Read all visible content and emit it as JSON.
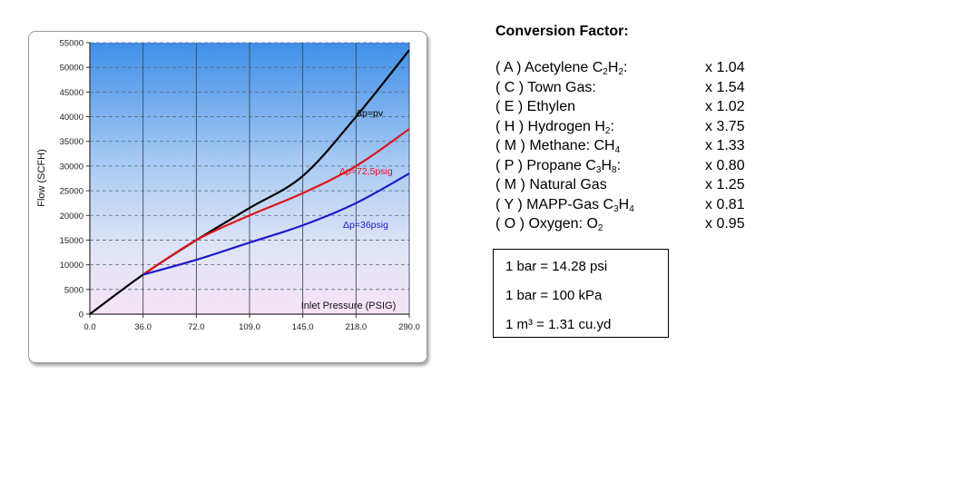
{
  "chart_data": {
    "type": "line",
    "xlabel": "Inlet Pressure (PSIG)",
    "ylabel": "Flow (SCFH)",
    "x_ticks": [
      "0.0",
      "36.0",
      "72.0",
      "109.0",
      "145.0",
      "218.0",
      "290.0"
    ],
    "y_ticks": [
      "0",
      "5000",
      "10000",
      "15000",
      "20000",
      "25000",
      "30000",
      "35000",
      "40000",
      "45000",
      "50000",
      "55000"
    ],
    "ylim": [
      0,
      55000
    ],
    "x_axis_note": "tick labels are evenly spaced although their values are not",
    "grid": true,
    "background": "vertical gradient from blue (top) to light pink (bottom)",
    "series": [
      {
        "name": "Δp=pv",
        "color": "#000000",
        "x": [
          0,
          36,
          72,
          109,
          145,
          218,
          290
        ],
        "y": [
          0,
          8000,
          15000,
          21500,
          28000,
          40000,
          53500
        ]
      },
      {
        "name": "Δp=72,5psig",
        "color": "#e0141c",
        "x": [
          36,
          72,
          109,
          145,
          218,
          290
        ],
        "y": [
          8000,
          15000,
          20000,
          24500,
          30000,
          37500
        ]
      },
      {
        "name": "Δp=36psig",
        "color": "#1a1acc",
        "x": [
          36,
          72,
          109,
          145,
          218,
          290
        ],
        "y": [
          8000,
          11000,
          14500,
          18000,
          22500,
          28500
        ]
      }
    ]
  },
  "conversion": {
    "title": "Conversion Factor:",
    "factors": [
      {
        "prefix": "( A ) Acetylene C",
        "sub1": "2",
        "mid": "H",
        "sub2": "2",
        "suffix": ":",
        "value": "x 1.04"
      },
      {
        "prefix": "( C ) Town Gas:",
        "value": "x 1.54"
      },
      {
        "prefix": "( E ) Ethylen",
        "value": "x 1.02"
      },
      {
        "prefix": "( H ) Hydrogen H",
        "sub1": "2",
        "suffix": ":",
        "value": "x 3.75"
      },
      {
        "prefix": "( M ) Methane: CH",
        "sub1": "4",
        "value": "x 1.33"
      },
      {
        "prefix": "( P ) Propane C",
        "sub1": "3",
        "mid": "H",
        "sub2": "8",
        "suffix": ":",
        "value": "x 0.80"
      },
      {
        "prefix": "( M ) Natural Gas",
        "value": "x 1.25"
      },
      {
        "prefix": "( Y ) MAPP-Gas C",
        "sub1": "3",
        "mid": "H",
        "sub2": "4",
        "value": "x 0.81"
      },
      {
        "prefix": "( O ) Oxygen: O",
        "sub1": "2",
        "value": "x 0.95"
      }
    ]
  },
  "units": [
    "1 bar = 14.28 psi",
    "1 bar = 100 kPa",
    "1 m³ =  1.31 cu.yd"
  ]
}
